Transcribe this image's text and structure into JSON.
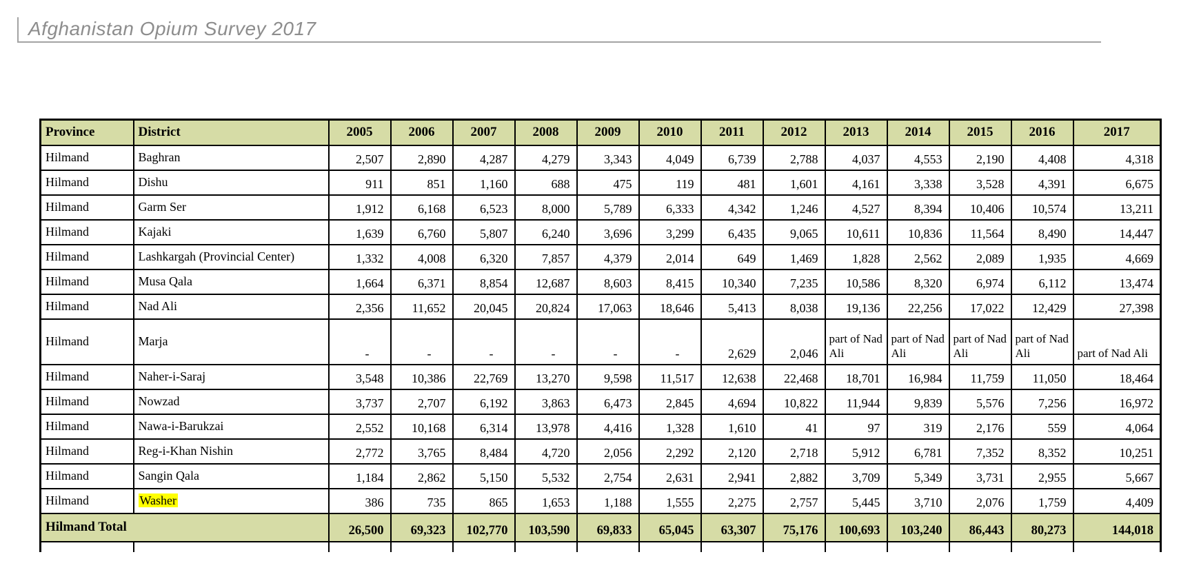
{
  "header": {
    "title": "Afghanistan Opium Survey 2017"
  },
  "table": {
    "columns": [
      "Province",
      "District",
      "2005",
      "2006",
      "2007",
      "2008",
      "2009",
      "2010",
      "2011",
      "2012",
      "2013",
      "2014",
      "2015",
      "2016",
      "2017"
    ],
    "rows": [
      {
        "province": "Hilmand",
        "district": "Baghran",
        "highlight": false,
        "values": [
          "2,507",
          "2,890",
          "4,287",
          "4,279",
          "3,343",
          "4,049",
          "6,739",
          "2,788",
          "4,037",
          "4,553",
          "2,190",
          "4,408",
          "4,318"
        ]
      },
      {
        "province": "Hilmand",
        "district": "Dishu",
        "highlight": false,
        "values": [
          "911",
          "851",
          "1,160",
          "688",
          "475",
          "119",
          "481",
          "1,601",
          "4,161",
          "3,338",
          "3,528",
          "4,391",
          "6,675"
        ]
      },
      {
        "province": "Hilmand",
        "district": "Garm Ser",
        "highlight": false,
        "values": [
          "1,912",
          "6,168",
          "6,523",
          "8,000",
          "5,789",
          "6,333",
          "4,342",
          "1,246",
          "4,527",
          "8,394",
          "10,406",
          "10,574",
          "13,211"
        ]
      },
      {
        "province": "Hilmand",
        "district": "Kajaki",
        "highlight": false,
        "values": [
          "1,639",
          "6,760",
          "5,807",
          "6,240",
          "3,696",
          "3,299",
          "6,435",
          "9,065",
          "10,611",
          "10,836",
          "11,564",
          "8,490",
          "14,447"
        ]
      },
      {
        "province": "Hilmand",
        "district": "Lashkargah (Provincial Center)",
        "highlight": false,
        "values": [
          "1,332",
          "4,008",
          "6,320",
          "7,857",
          "4,379",
          "2,014",
          "649",
          "1,469",
          "1,828",
          "2,562",
          "2,089",
          "1,935",
          "4,669"
        ]
      },
      {
        "province": "Hilmand",
        "district": "Musa Qala",
        "highlight": false,
        "values": [
          "1,664",
          "6,371",
          "8,854",
          "12,687",
          "8,603",
          "8,415",
          "10,340",
          "7,235",
          "10,586",
          "8,320",
          "6,974",
          "6,112",
          "13,474"
        ]
      },
      {
        "province": "Hilmand",
        "district": "Nad Ali",
        "highlight": false,
        "values": [
          "2,356",
          "11,652",
          "20,045",
          "20,824",
          "17,063",
          "18,646",
          "5,413",
          "8,038",
          "19,136",
          "22,256",
          "17,022",
          "12,429",
          "27,398"
        ]
      },
      {
        "province": "Hilmand",
        "district": "Marja",
        "highlight": false,
        "tall": true,
        "values": [
          "-",
          "-",
          "-",
          "-",
          "-",
          "-",
          "2,629",
          "2,046",
          "part of Nad Ali",
          "part of Nad Ali",
          "part of Nad Ali",
          "part of Nad Ali",
          "part of Nad Ali"
        ]
      },
      {
        "province": "Hilmand",
        "district": "Naher-i-Saraj",
        "highlight": false,
        "values": [
          "3,548",
          "10,386",
          "22,769",
          "13,270",
          "9,598",
          "11,517",
          "12,638",
          "22,468",
          "18,701",
          "16,984",
          "11,759",
          "11,050",
          "18,464"
        ]
      },
      {
        "province": "Hilmand",
        "district": "Nowzad",
        "highlight": false,
        "values": [
          "3,737",
          "2,707",
          "6,192",
          "3,863",
          "6,473",
          "2,845",
          "4,694",
          "10,822",
          "11,944",
          "9,839",
          "5,576",
          "7,256",
          "16,972"
        ]
      },
      {
        "province": "Hilmand",
        "district": "Nawa-i-Barukzai",
        "highlight": false,
        "values": [
          "2,552",
          "10,168",
          "6,314",
          "13,978",
          "4,416",
          "1,328",
          "1,610",
          "41",
          "97",
          "319",
          "2,176",
          "559",
          "4,064"
        ]
      },
      {
        "province": "Hilmand",
        "district": "Reg-i-Khan Nishin",
        "highlight": false,
        "values": [
          "2,772",
          "3,765",
          "8,484",
          "4,720",
          "2,056",
          "2,292",
          "2,120",
          "2,718",
          "5,912",
          "6,781",
          "7,352",
          "8,352",
          "10,251"
        ]
      },
      {
        "province": "Hilmand",
        "district": "Sangin Qala",
        "highlight": false,
        "values": [
          "1,184",
          "2,862",
          "5,150",
          "5,532",
          "2,754",
          "2,631",
          "2,941",
          "2,882",
          "3,709",
          "5,349",
          "3,731",
          "2,955",
          "5,667"
        ]
      },
      {
        "province": "Hilmand",
        "district": "Washer",
        "highlight": true,
        "values": [
          "386",
          "735",
          "865",
          "1,653",
          "1,188",
          "1,555",
          "2,275",
          "2,757",
          "5,445",
          "3,710",
          "2,076",
          "1,759",
          "4,409"
        ]
      }
    ],
    "total_row": {
      "label": "Hilmand Total",
      "values": [
        "26,500",
        "69,323",
        "102,770",
        "103,590",
        "69,833",
        "65,045",
        "63,307",
        "75,176",
        "100,693",
        "103,240",
        "86,443",
        "80,273",
        "144,018"
      ]
    }
  },
  "colors": {
    "header_bg": "#d6dca6",
    "highlight": "#ffff00",
    "title_text": "#8d8d8d",
    "table_border": "#000000"
  }
}
